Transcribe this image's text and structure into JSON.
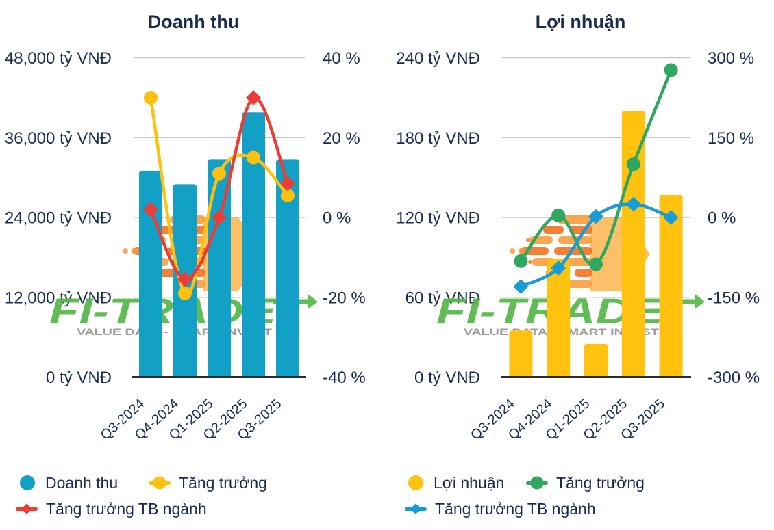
{
  "watermark": {
    "brand": "FI-TRADE",
    "tagline": "VALUE DATA - SMART INVEST",
    "brand_color": "#55B848",
    "tagline_color": "#9B9B9B",
    "logo_orange": "#F26E1D",
    "logo_orange_light": "#F89B38",
    "logo_yellow": "#FBAE3F"
  },
  "chart_data": [
    {
      "type": "bar+line",
      "title": "Doanh thu",
      "categories": [
        "Q3-2024",
        "Q4-2024",
        "Q1-2025",
        "Q2-2025",
        "Q3-2025"
      ],
      "left_axis": {
        "unit": "tỷ VNĐ",
        "max": 48000,
        "tick_labels": [
          "48,000 tỷ VNĐ",
          "36,000 tỷ VNĐ",
          "24,000 tỷ VNĐ",
          "12,000 tỷ VNĐ",
          "0 tỷ VNĐ"
        ]
      },
      "right_axis": {
        "unit": "%",
        "max": 40,
        "min": -40,
        "tick_labels": [
          "40 %",
          "20 %",
          "0 %",
          "-20 %",
          "-40 %"
        ]
      },
      "bars": {
        "name": "Doanh thu",
        "color": "#12A0C7",
        "values": [
          31000,
          29000,
          32700,
          39800,
          32700
        ]
      },
      "lines": [
        {
          "name": "Tăng trưởng",
          "color": "#FEC10D",
          "marker": "circle",
          "values": [
            30,
            -19,
            11,
            15,
            5.5
          ]
        },
        {
          "name": "Tăng trưởng TB ngành",
          "color": "#EE3B33",
          "marker": "diamond",
          "values": [
            2,
            -15.5,
            0,
            30,
            8.5
          ]
        }
      ]
    },
    {
      "type": "bar+line",
      "title": "Lợi nhuận",
      "categories": [
        "Q3-2024",
        "Q4-2024",
        "Q1-2025",
        "Q2-2025",
        "Q3-2025"
      ],
      "left_axis": {
        "unit": "tỷ VNĐ",
        "max": 240,
        "tick_labels": [
          "240 tỷ VNĐ",
          "180 tỷ VNĐ",
          "120 tỷ VNĐ",
          "60 tỷ VNĐ",
          "0 tỷ VNĐ"
        ]
      },
      "right_axis": {
        "unit": "%",
        "max": 300,
        "min": -300,
        "tick_labels": [
          "300 %",
          "150 %",
          "0 %",
          "-150 %",
          "-300 %"
        ]
      },
      "bars": {
        "name": "Lợi nhuận",
        "color": "#FFC20E",
        "values": [
          35,
          89,
          25,
          200,
          137
        ]
      },
      "lines": [
        {
          "name": "Tăng trưởng",
          "color": "#2FA761",
          "marker": "circle",
          "values": [
            -82,
            4,
            -88,
            100,
            277
          ]
        },
        {
          "name": "Tăng trưởng TB ngành",
          "color": "#179CD8",
          "marker": "diamond",
          "values": [
            -130,
            -95,
            2,
            25,
            0
          ]
        }
      ]
    }
  ]
}
